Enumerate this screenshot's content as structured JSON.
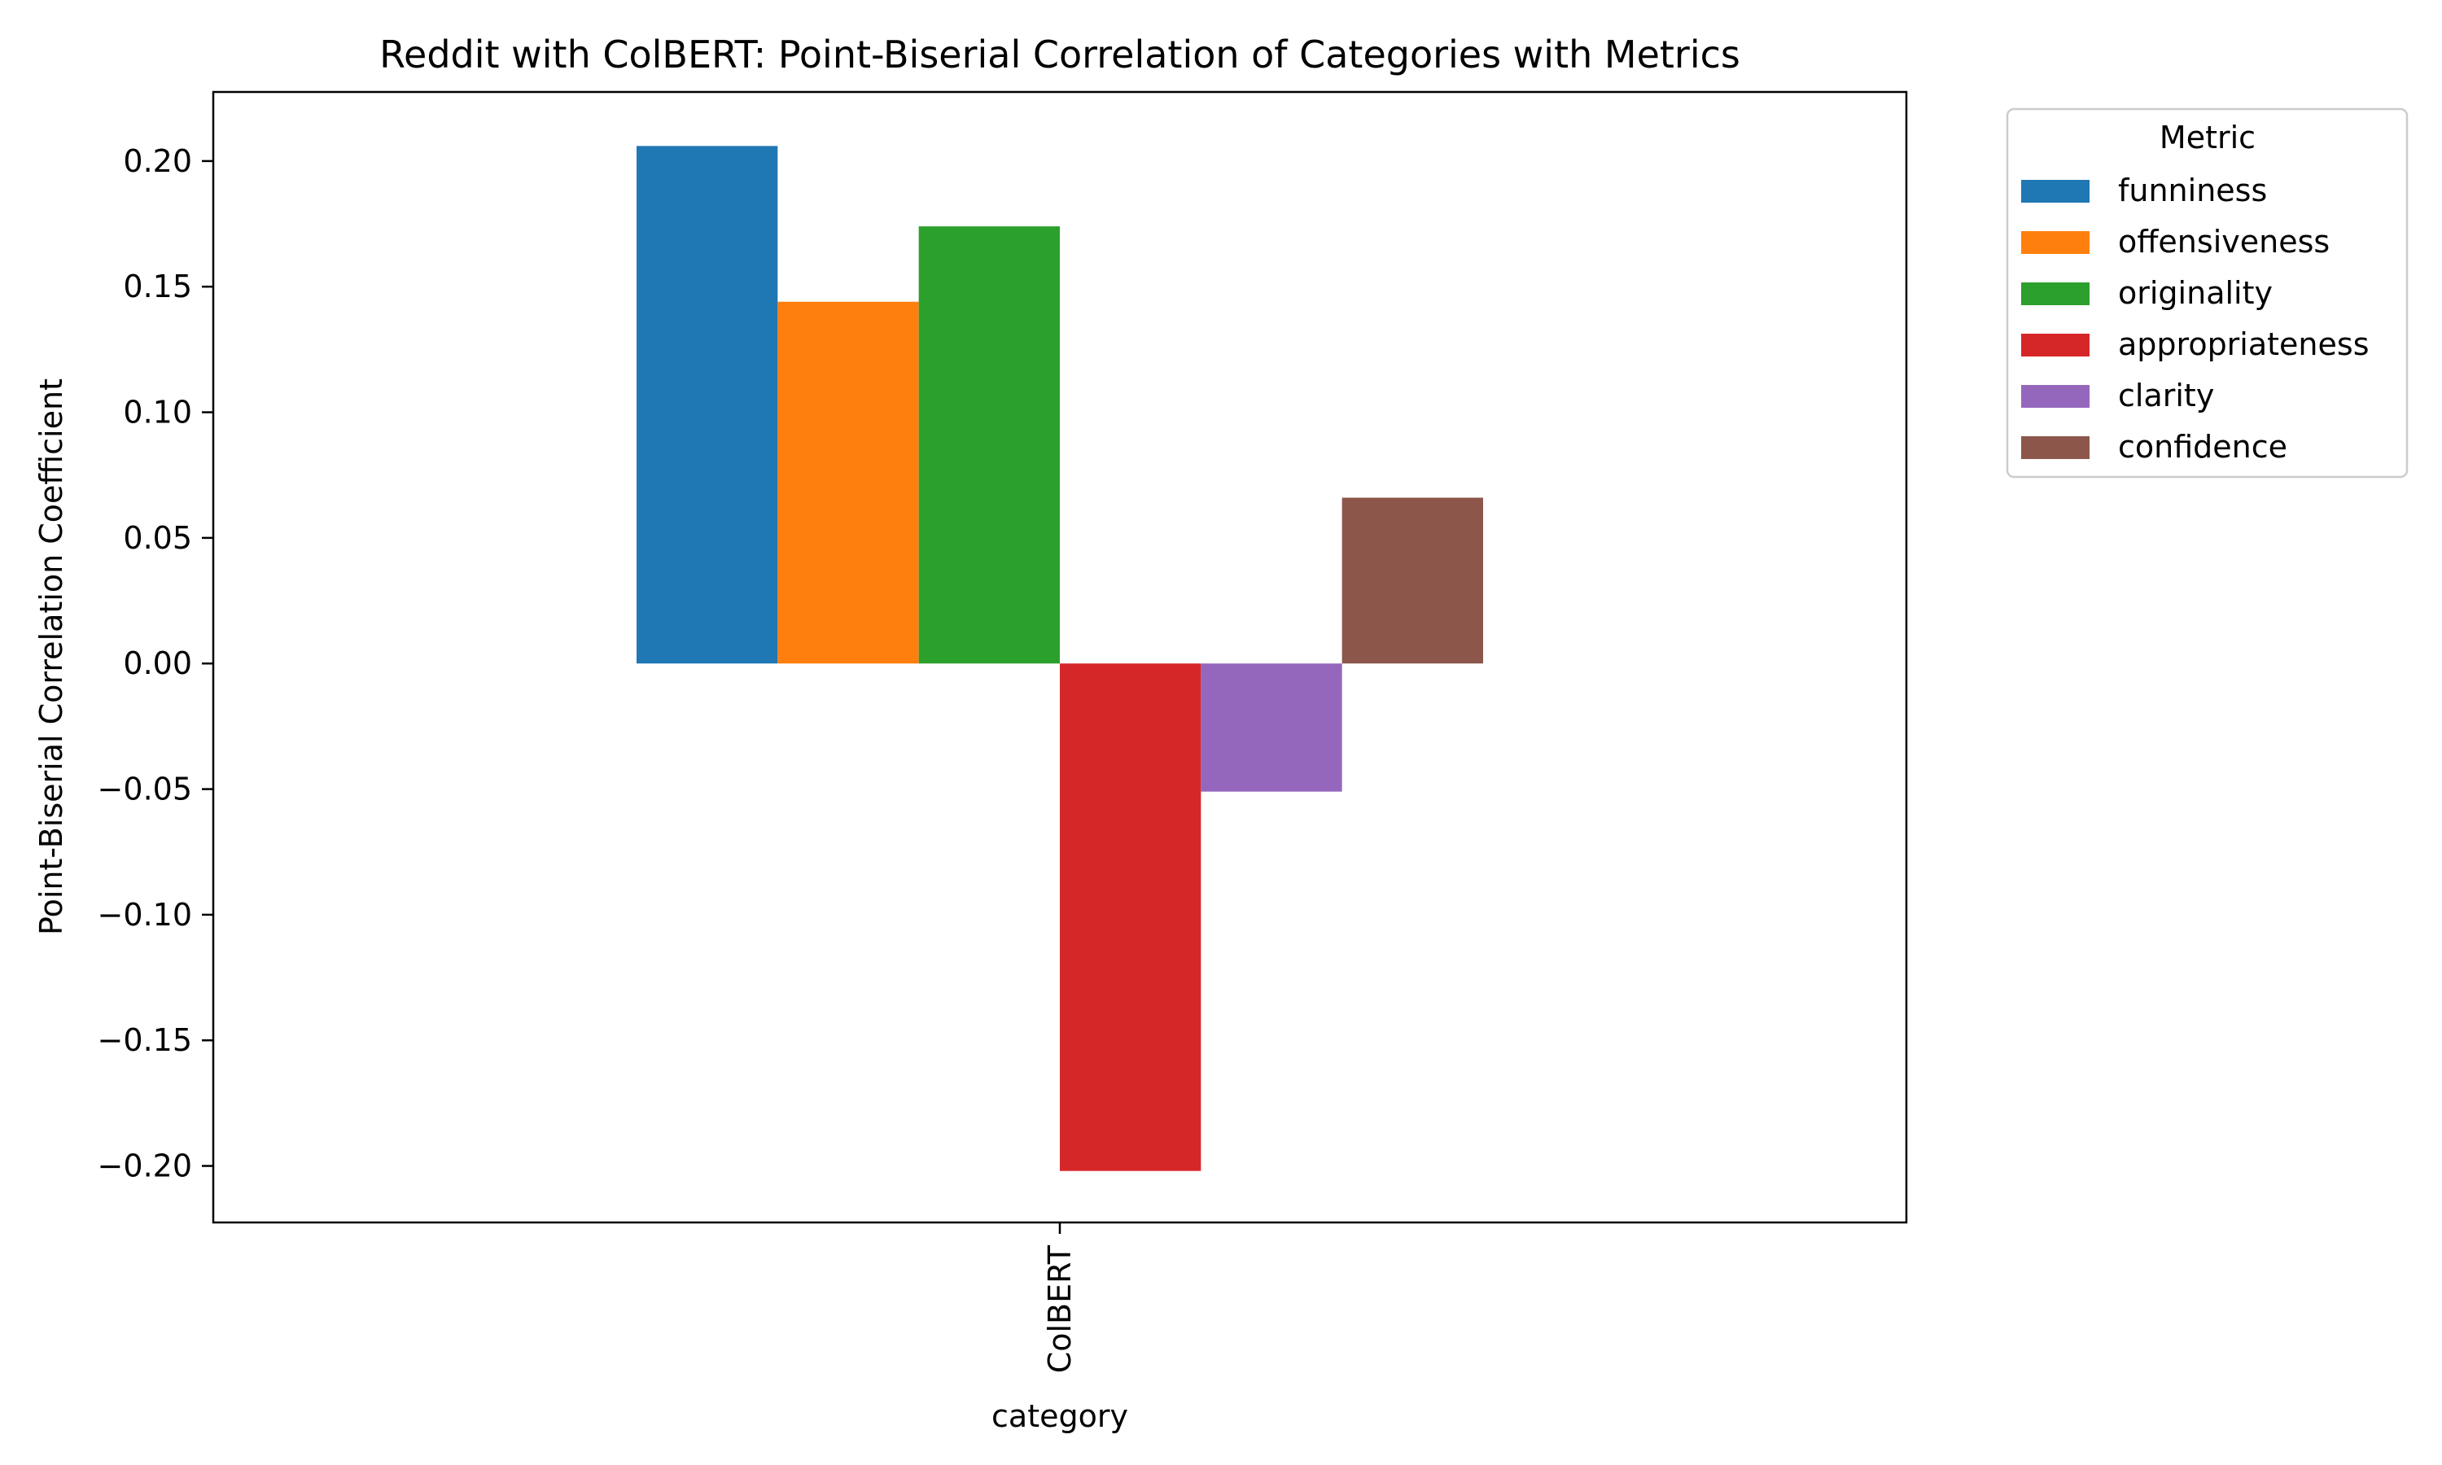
{
  "chart_data": {
    "type": "bar",
    "title": "Reddit with ColBERT: Point-Biserial Correlation of Categories with Metrics",
    "xlabel": "category",
    "ylabel": "Point-Biserial Correlation Coefficient",
    "categories": [
      "ColBERT"
    ],
    "ylim": [
      -0.2225,
      0.2275
    ],
    "yticks": [
      0.2,
      0.15,
      0.1,
      0.05,
      0.0,
      -0.05,
      -0.1,
      -0.15,
      -0.2
    ],
    "ytick_labels": [
      "0.20",
      "0.15",
      "0.10",
      "0.05",
      "0.00",
      "−0.05",
      "−0.10",
      "−0.15",
      "−0.20"
    ],
    "grid": false,
    "legend": {
      "title": "Metric",
      "placement": "outside-right-top"
    },
    "series": [
      {
        "name": "funniness",
        "values": [
          0.206
        ],
        "color": "#1f77b4"
      },
      {
        "name": "offensiveness",
        "values": [
          0.144
        ],
        "color": "#ff7f0e"
      },
      {
        "name": "originality",
        "values": [
          0.174
        ],
        "color": "#2ca02c"
      },
      {
        "name": "appropriateness",
        "values": [
          -0.202
        ],
        "color": "#d62728"
      },
      {
        "name": "clarity",
        "values": [
          -0.051
        ],
        "color": "#9467bd"
      },
      {
        "name": "confidence",
        "values": [
          0.066
        ],
        "color": "#8c564b"
      }
    ]
  }
}
